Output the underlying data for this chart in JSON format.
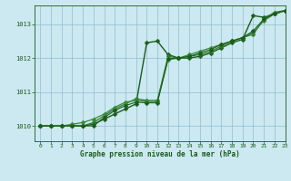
{
  "background_color": "#cce8f0",
  "plot_bg_color": "#cce8f0",
  "grid_color": "#88bbcc",
  "line_color_dark": "#1a5c1a",
  "xlabel": "Graphe pression niveau de la mer (hPa)",
  "xlim": [
    -0.5,
    23
  ],
  "ylim": [
    1009.55,
    1013.55
  ],
  "yticks": [
    1010,
    1011,
    1012,
    1013
  ],
  "xticks": [
    0,
    1,
    2,
    3,
    4,
    5,
    6,
    7,
    8,
    9,
    10,
    11,
    12,
    13,
    14,
    15,
    16,
    17,
    18,
    19,
    20,
    21,
    22,
    23
  ],
  "series": [
    {
      "x": [
        0,
        1,
        2,
        3,
        4,
        5,
        6,
        7,
        8,
        9,
        10,
        11,
        12,
        13,
        14,
        15,
        16,
        17,
        18,
        19,
        20,
        21,
        22,
        23
      ],
      "y": [
        1010.0,
        1010.0,
        1010.0,
        1010.0,
        1010.0,
        1010.05,
        1010.2,
        1010.35,
        1010.5,
        1010.65,
        1012.45,
        1012.5,
        1012.1,
        1012.0,
        1012.0,
        1012.05,
        1012.15,
        1012.3,
        1012.45,
        1012.55,
        1013.25,
        1013.2,
        1013.3,
        1013.4
      ],
      "color": "#1a5c1a",
      "lw": 1.0
    },
    {
      "x": [
        0,
        1,
        2,
        3,
        4,
        5,
        6,
        7,
        8,
        9,
        10,
        11,
        12,
        13,
        14,
        15,
        16,
        17,
        18,
        19,
        20,
        21,
        22,
        23
      ],
      "y": [
        1010.0,
        1010.0,
        1010.0,
        1010.0,
        1010.0,
        1010.1,
        1010.3,
        1010.5,
        1010.65,
        1010.8,
        1010.75,
        1010.75,
        1012.05,
        1012.0,
        1012.05,
        1012.1,
        1012.2,
        1012.35,
        1012.5,
        1012.6,
        1012.7,
        1013.15,
        1013.35,
        1013.4
      ],
      "color": "#2d7a2d",
      "lw": 0.9
    },
    {
      "x": [
        0,
        1,
        2,
        3,
        4,
        5,
        6,
        7,
        8,
        9,
        10,
        11,
        12,
        13,
        14,
        15,
        16,
        17,
        18,
        19,
        20,
        21,
        22,
        23
      ],
      "y": [
        1010.0,
        1010.0,
        1010.0,
        1010.05,
        1010.1,
        1010.2,
        1010.35,
        1010.55,
        1010.7,
        1010.75,
        1010.72,
        1010.72,
        1011.95,
        1012.0,
        1012.1,
        1012.2,
        1012.3,
        1012.4,
        1012.5,
        1012.6,
        1012.75,
        1013.1,
        1013.3,
        1013.4
      ],
      "color": "#3a8a3a",
      "lw": 0.9
    },
    {
      "x": [
        0,
        1,
        2,
        3,
        4,
        5,
        6,
        7,
        8,
        9,
        10,
        11,
        12,
        13,
        14,
        15,
        16,
        17,
        18,
        19,
        20,
        21,
        22,
        23
      ],
      "y": [
        1010.0,
        1010.0,
        1010.0,
        1010.0,
        1010.0,
        1010.0,
        1010.25,
        1010.45,
        1010.6,
        1010.7,
        1010.68,
        1010.68,
        1011.98,
        1012.0,
        1012.05,
        1012.15,
        1012.25,
        1012.4,
        1012.5,
        1012.6,
        1012.8,
        1013.15,
        1013.3,
        1013.4
      ],
      "color": "#1a5c1a",
      "lw": 0.8
    }
  ],
  "marker": "D",
  "markersize": 2.5
}
